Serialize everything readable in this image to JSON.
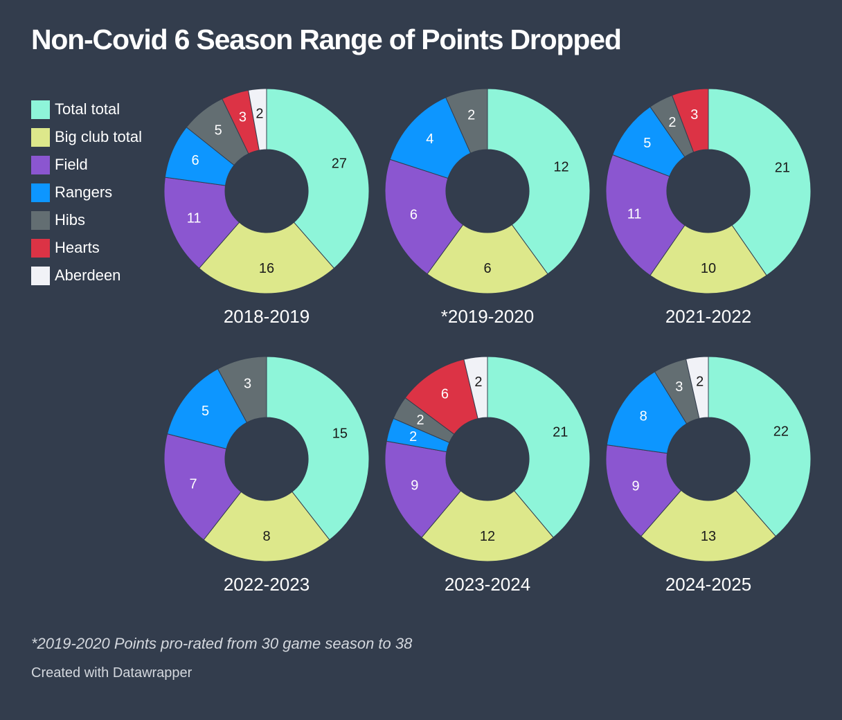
{
  "header": {
    "title": "Non-Covid 6 Season Range of Points Dropped"
  },
  "footer": {
    "note": "*2019-2020 Points pro-rated from 30 game season to 38",
    "credit": "Created with Datawrapper"
  },
  "colors": {
    "background": "#333d4d",
    "segment_stroke": "#333d4d",
    "label_dark": "#1a1a1a",
    "label_light": "#ffffff"
  },
  "chart_data": {
    "type": "pie",
    "variant": "donut",
    "legend_position": "top-left",
    "series": [
      {
        "name": "Total total",
        "color": "#8ef5d9",
        "label_color": "dark"
      },
      {
        "name": "Big club total",
        "color": "#dde88b",
        "label_color": "dark"
      },
      {
        "name": "Field",
        "color": "#8b56d0",
        "label_color": "light"
      },
      {
        "name": "Rangers",
        "color": "#0d96ff",
        "label_color": "light"
      },
      {
        "name": "Hibs",
        "color": "#636e72",
        "label_color": "light"
      },
      {
        "name": "Hearts",
        "color": "#dc3345",
        "label_color": "light"
      },
      {
        "name": "Aberdeen",
        "color": "#f1f2f7",
        "label_color": "dark"
      }
    ],
    "charts": [
      {
        "title": "2018-2019",
        "values": [
          27,
          16,
          11,
          6,
          5,
          3,
          2
        ]
      },
      {
        "title": "*2019-2020",
        "values": [
          12,
          6,
          6,
          4,
          2,
          0,
          0
        ]
      },
      {
        "title": "2021-2022",
        "values": [
          21,
          10,
          11,
          5,
          2,
          3,
          0
        ]
      },
      {
        "title": "2022-2023",
        "values": [
          15,
          8,
          7,
          5,
          3,
          0,
          0
        ]
      },
      {
        "title": "2023-2024",
        "values": [
          21,
          12,
          9,
          2,
          2,
          6,
          2
        ]
      },
      {
        "title": "2024-2025",
        "values": [
          22,
          13,
          9,
          8,
          3,
          0,
          2
        ]
      }
    ]
  }
}
